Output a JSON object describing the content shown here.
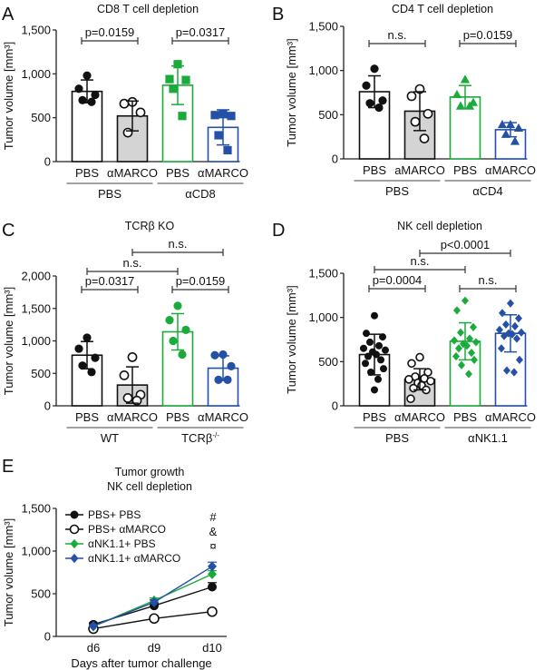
{
  "colors": {
    "black": "#111111",
    "gray_fill": "#d4d4d4",
    "green": "#1aab3b",
    "blue": "#2450a5",
    "axis": "#222222"
  },
  "chart_data": [
    {
      "panel": "A",
      "type": "bar",
      "title": "CD8 T cell depletion",
      "ylabel": "Tumor volume [mm³]",
      "ylim": [
        0,
        1500
      ],
      "yticks": [
        0,
        500,
        1000,
        1500
      ],
      "ytick_labels": [
        "0",
        "500",
        "1,000",
        "1,500"
      ],
      "categories": [
        "PBS",
        "αMARCO",
        "PBS",
        "αMARCO"
      ],
      "groups": [
        {
          "label": "PBS",
          "span": [
            0,
            1
          ]
        },
        {
          "label": "αCD8",
          "span": [
            2,
            3
          ]
        }
      ],
      "series": [
        {
          "name": "PBS / PBS",
          "color": "black",
          "fill": "white",
          "marker": "filled-circle",
          "mean": 800,
          "sd": 130,
          "points": [
            980,
            830,
            760,
            700,
            680
          ]
        },
        {
          "name": "PBS / αMARCO",
          "color": "black",
          "fill": "gray",
          "marker": "open-circle",
          "mean": 520,
          "sd": 170,
          "points": [
            680,
            660,
            560,
            330
          ]
        },
        {
          "name": "αCD8 / PBS",
          "color": "green",
          "fill": "white",
          "marker": "filled-square",
          "mean": 870,
          "sd": 220,
          "points": [
            1110,
            940,
            930,
            830,
            520
          ]
        },
        {
          "name": "αCD8 / αMARCO",
          "color": "blue",
          "fill": "white",
          "marker": "filled-square",
          "mean": 390,
          "sd": 200,
          "points": [
            540,
            530,
            520,
            300,
            130
          ]
        }
      ],
      "comparisons": [
        {
          "from": 0,
          "to": 1,
          "label": "p=0.0159",
          "level": 0
        },
        {
          "from": 2,
          "to": 3,
          "label": "p=0.0317",
          "level": 0
        }
      ]
    },
    {
      "panel": "B",
      "type": "bar",
      "title": "CD4 T cell depletion",
      "ylabel": "Tumor volume [mm³]",
      "ylim": [
        0,
        1500
      ],
      "yticks": [
        0,
        500,
        1000,
        1500
      ],
      "ytick_labels": [
        "0",
        "500",
        "1,000",
        "1,500"
      ],
      "categories": [
        "PBS",
        "aMARCO",
        "PBS",
        "αMARCO"
      ],
      "groups": [
        {
          "label": "PBS",
          "span": [
            0,
            1
          ]
        },
        {
          "label": "αCD4",
          "span": [
            2,
            3
          ]
        }
      ],
      "series": [
        {
          "name": "PBS / PBS",
          "color": "black",
          "fill": "white",
          "marker": "filled-circle",
          "mean": 760,
          "sd": 180,
          "points": [
            1020,
            830,
            660,
            630,
            580
          ]
        },
        {
          "name": "PBS / αMARCO",
          "color": "black",
          "fill": "gray",
          "marker": "open-circle",
          "mean": 540,
          "sd": 220,
          "points": [
            790,
            710,
            510,
            420,
            230
          ]
        },
        {
          "name": "αCD4 / PBS",
          "color": "green",
          "fill": "white",
          "marker": "filled-triangle",
          "mean": 700,
          "sd": 130,
          "points": [
            900,
            730,
            640,
            600,
            600
          ]
        },
        {
          "name": "αCD4 / αMARCO",
          "color": "blue",
          "fill": "white",
          "marker": "filled-triangle",
          "mean": 330,
          "sd": 80,
          "points": [
            390,
            390,
            350,
            280,
            200
          ]
        }
      ],
      "comparisons": [
        {
          "from": 0,
          "to": 1,
          "label": "n.s.",
          "level": 0
        },
        {
          "from": 2,
          "to": 3,
          "label": "p=0.0159",
          "level": 0
        }
      ]
    },
    {
      "panel": "C",
      "type": "bar",
      "title": "TCRβ KO",
      "ylabel": "Tumor volume [mm³]",
      "ylim": [
        0,
        2000
      ],
      "yticks": [
        0,
        500,
        1000,
        1500,
        2000
      ],
      "ytick_labels": [
        "0",
        "500",
        "1,000",
        "1,500",
        "2,000"
      ],
      "categories": [
        "PBS",
        "αMARCO",
        "PBS",
        "αMARCO"
      ],
      "groups": [
        {
          "label": "WT",
          "span": [
            0,
            1
          ]
        },
        {
          "label": "TCRβ-/-",
          "span": [
            2,
            3
          ]
        }
      ],
      "series": [
        {
          "name": "WT / PBS",
          "color": "black",
          "fill": "white",
          "marker": "filled-circle",
          "mean": 780,
          "sd": 210,
          "points": [
            1050,
            880,
            740,
            620,
            520
          ]
        },
        {
          "name": "WT / αMARCO",
          "color": "black",
          "fill": "gray",
          "marker": "open-circle",
          "mean": 320,
          "sd": 280,
          "points": [
            750,
            470,
            170,
            120,
            80
          ]
        },
        {
          "name": "TCRβ-/- / PBS",
          "color": "green",
          "fill": "white",
          "marker": "filled-circle",
          "mean": 1140,
          "sd": 280,
          "points": [
            1540,
            1320,
            1170,
            1000,
            790
          ]
        },
        {
          "name": "TCRβ-/- / αMARCO",
          "color": "blue",
          "fill": "white",
          "marker": "filled-circle",
          "mean": 580,
          "sd": 190,
          "points": [
            790,
            780,
            610,
            400,
            400
          ]
        }
      ],
      "comparisons": [
        {
          "from": 0,
          "to": 1,
          "label": "p=0.0317",
          "level": 0
        },
        {
          "from": 2,
          "to": 3,
          "label": "p=0.0159",
          "level": 0
        },
        {
          "from": 0,
          "to": 2,
          "label": "n.s.",
          "level": 1
        },
        {
          "from": 1,
          "to": 3,
          "label": "n.s.",
          "level": 2
        }
      ]
    },
    {
      "panel": "D",
      "type": "bar",
      "title": "NK cell depletion",
      "ylabel": "Tumor volume [mm³]",
      "ylim": [
        0,
        1500
      ],
      "yticks": [
        0,
        500,
        1000,
        1500
      ],
      "ytick_labels": [
        "0",
        "500",
        "1,000",
        "1,500"
      ],
      "categories": [
        "PBS",
        "αMARCO",
        "PBS",
        "αMARCO"
      ],
      "groups": [
        {
          "label": "PBS",
          "span": [
            0,
            1
          ]
        },
        {
          "label": "αNK1.1",
          "span": [
            2,
            3
          ]
        }
      ],
      "series": [
        {
          "name": "PBS / PBS",
          "color": "black",
          "fill": "white",
          "marker": "filled-circle",
          "mean": 580,
          "sd": 230,
          "points": [
            1020,
            820,
            780,
            720,
            680,
            650,
            630,
            610,
            580,
            560,
            520,
            480,
            420,
            380,
            300,
            180
          ]
        },
        {
          "name": "PBS / αMARCO",
          "color": "black",
          "fill": "gray",
          "marker": "open-circle",
          "mean": 300,
          "sd": 120,
          "points": [
            550,
            480,
            380,
            330,
            310,
            300,
            280,
            260,
            230,
            200,
            180,
            80
          ]
        },
        {
          "name": "αNK1.1 / PBS",
          "color": "green",
          "fill": "white",
          "marker": "filled-diamond",
          "mean": 730,
          "sd": 210,
          "points": [
            1190,
            1080,
            890,
            830,
            760,
            740,
            720,
            700,
            680,
            650,
            600,
            560,
            520,
            460,
            360
          ]
        },
        {
          "name": "αNK1.1 / αMARCO",
          "color": "blue",
          "fill": "white",
          "marker": "filled-diamond",
          "mean": 820,
          "sd": 210,
          "points": [
            1160,
            1050,
            990,
            920,
            900,
            860,
            830,
            820,
            810,
            790,
            760,
            650,
            520,
            400,
            380
          ]
        }
      ],
      "comparisons": [
        {
          "from": 0,
          "to": 1,
          "label": "p=0.0004",
          "level": 0
        },
        {
          "from": 2,
          "to": 3,
          "label": "n.s.",
          "level": 0
        },
        {
          "from": 0,
          "to": 2,
          "label": "n.s.",
          "level": 1
        },
        {
          "from": 1,
          "to": 3,
          "label": "p<0.0001",
          "level": 2
        }
      ]
    },
    {
      "panel": "E",
      "type": "line",
      "title": "Tumor growth\nNK cell depletion",
      "title_lines": [
        "Tumor growth",
        "NK cell depletion"
      ],
      "xlabel": "Days after tumor challenge",
      "ylabel": "Tumor volume [mm³]",
      "ylim": [
        0,
        1500
      ],
      "yticks": [
        0,
        500,
        1000,
        1500
      ],
      "ytick_labels": [
        "0",
        "500",
        "1,000",
        "1,500"
      ],
      "x": [
        "d6",
        "d9",
        "d10"
      ],
      "legend_position": "top-left",
      "series": [
        {
          "name": "PBS+ PBS",
          "color": "black",
          "marker": "filled-circle",
          "values": [
            140,
            360,
            580
          ],
          "err": [
            20,
            30,
            50
          ]
        },
        {
          "name": "PBS+ αMARCO",
          "color": "black",
          "marker": "open-circle",
          "values": [
            90,
            210,
            290
          ],
          "err": [
            10,
            20,
            30
          ]
        },
        {
          "name": "αNK1.1+ PBS",
          "color": "green",
          "marker": "filled-diamond",
          "values": [
            120,
            420,
            730
          ],
          "err": [
            15,
            30,
            40
          ]
        },
        {
          "name": "αNK1.1+ αMARCO",
          "color": "blue",
          "marker": "filled-diamond",
          "values": [
            120,
            400,
            820
          ],
          "err": [
            15,
            30,
            50
          ]
        }
      ],
      "annotations": [
        "#",
        "&",
        "¤"
      ]
    }
  ]
}
